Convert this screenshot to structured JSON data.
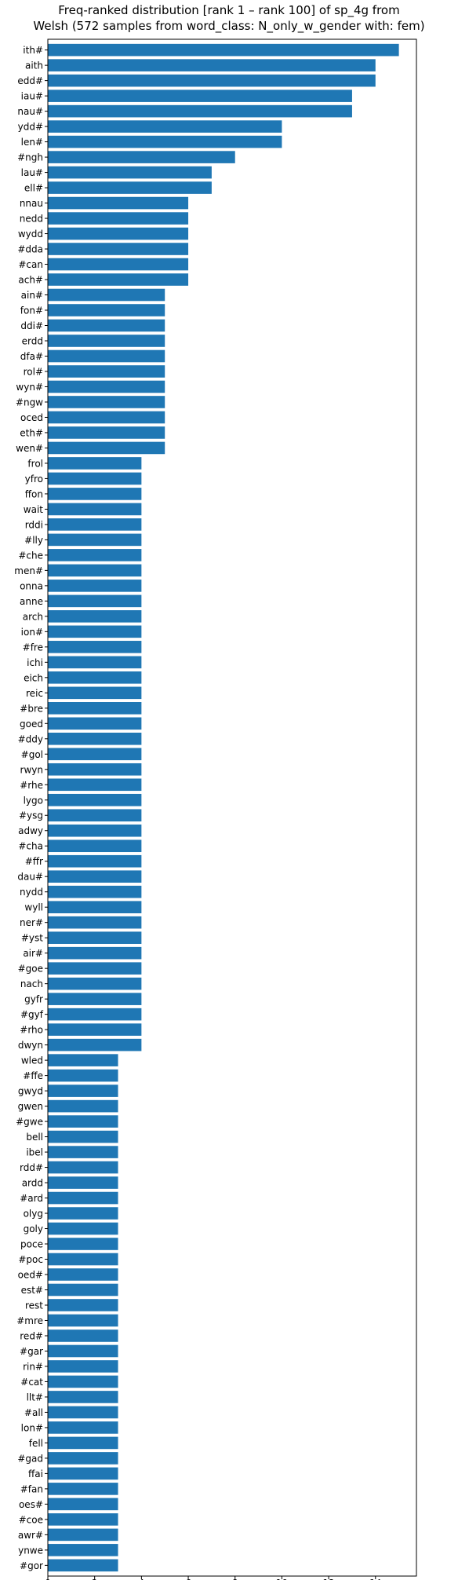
{
  "chart_data": {
    "type": "bar",
    "orientation": "horizontal",
    "title": "Freq-ranked distribution [rank 1 – rank 100] of sp_4g from",
    "subtitle": "Welsh (572 samples from word_class: N_only_w_gender with: fem)",
    "xlabel": "",
    "ylabel": "",
    "xlim": [
      0,
      15.75
    ],
    "xticks": [
      0,
      2,
      4,
      6,
      8,
      10,
      12,
      14
    ],
    "grid": false,
    "bar_color": "#1f77b4",
    "categories": [
      "ith#",
      "aith",
      "edd#",
      "iau#",
      "nau#",
      "ydd#",
      "len#",
      "#ngh",
      "lau#",
      "ell#",
      "nnau",
      "nedd",
      "wydd",
      "#dda",
      "#can",
      "ach#",
      "ain#",
      "fon#",
      "ddi#",
      "erdd",
      "dfa#",
      "rol#",
      "wyn#",
      "#ngw",
      "oced",
      "eth#",
      "wen#",
      "frol",
      "yfro",
      "ffon",
      "wait",
      "rddi",
      "#lly",
      "#che",
      "men#",
      "onna",
      "anne",
      "arch",
      "ion#",
      "#fre",
      "ichi",
      "eich",
      "reic",
      "#bre",
      "goed",
      "#ddy",
      "#gol",
      "rwyn",
      "#rhe",
      "lygo",
      "#ysg",
      "adwy",
      "#cha",
      "#ffr",
      "dau#",
      "nydd",
      "wyll",
      "ner#",
      "#yst",
      "air#",
      "#goe",
      "nach",
      "gyfr",
      "#gyf",
      "#rho",
      "dwyn",
      "wled",
      "#ffe",
      "gwyd",
      "gwen",
      "#gwe",
      "bell",
      "ibel",
      "rdd#",
      "ardd",
      "#ard",
      "olyg",
      "goly",
      "poce",
      "#poc",
      "oed#",
      "est#",
      "rest",
      "#mre",
      "red#",
      "#gar",
      "rin#",
      "#cat",
      "llt#",
      "#all",
      "lon#",
      "fell",
      "#gad",
      "ffai",
      "#fan",
      "oes#",
      "#coe",
      "awr#",
      "ynwe",
      "#gor"
    ],
    "values": [
      15,
      14,
      14,
      13,
      13,
      10,
      10,
      8,
      7,
      7,
      6,
      6,
      6,
      6,
      6,
      6,
      5,
      5,
      5,
      5,
      5,
      5,
      5,
      5,
      5,
      5,
      5,
      4,
      4,
      4,
      4,
      4,
      4,
      4,
      4,
      4,
      4,
      4,
      4,
      4,
      4,
      4,
      4,
      4,
      4,
      4,
      4,
      4,
      4,
      4,
      4,
      4,
      4,
      4,
      4,
      4,
      4,
      4,
      4,
      4,
      4,
      4,
      4,
      4,
      4,
      4,
      3,
      3,
      3,
      3,
      3,
      3,
      3,
      3,
      3,
      3,
      3,
      3,
      3,
      3,
      3,
      3,
      3,
      3,
      3,
      3,
      3,
      3,
      3,
      3,
      3,
      3,
      3,
      3,
      3,
      3,
      3,
      3,
      3,
      3
    ]
  }
}
